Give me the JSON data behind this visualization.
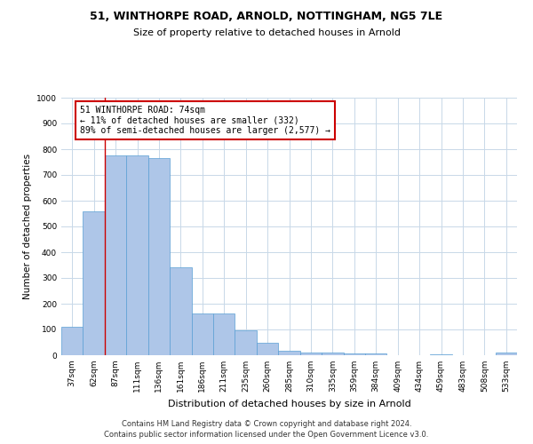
{
  "title1": "51, WINTHORPE ROAD, ARNOLD, NOTTINGHAM, NG5 7LE",
  "title2": "Size of property relative to detached houses in Arnold",
  "xlabel": "Distribution of detached houses by size in Arnold",
  "ylabel": "Number of detached properties",
  "categories": [
    "37sqm",
    "62sqm",
    "87sqm",
    "111sqm",
    "136sqm",
    "161sqm",
    "186sqm",
    "211sqm",
    "235sqm",
    "260sqm",
    "285sqm",
    "310sqm",
    "335sqm",
    "359sqm",
    "384sqm",
    "409sqm",
    "434sqm",
    "459sqm",
    "483sqm",
    "508sqm",
    "533sqm"
  ],
  "values": [
    110,
    557,
    775,
    775,
    765,
    340,
    162,
    162,
    97,
    50,
    18,
    12,
    11,
    8,
    8,
    0,
    0,
    5,
    0,
    0,
    11
  ],
  "bar_color": "#aec6e8",
  "bar_edge_color": "#5a9fd4",
  "property_line_x": 1.5,
  "annotation_text": "51 WINTHORPE ROAD: 74sqm\n← 11% of detached houses are smaller (332)\n89% of semi-detached houses are larger (2,577) →",
  "annotation_box_color": "#ffffff",
  "annotation_box_edge_color": "#cc0000",
  "footer1": "Contains HM Land Registry data © Crown copyright and database right 2024.",
  "footer2": "Contains public sector information licensed under the Open Government Licence v3.0.",
  "ylim": [
    0,
    1000
  ],
  "yticks": [
    0,
    100,
    200,
    300,
    400,
    500,
    600,
    700,
    800,
    900,
    1000
  ],
  "bg_color": "#ffffff",
  "grid_color": "#c8d8e8",
  "title1_fontsize": 9,
  "title2_fontsize": 8,
  "xlabel_fontsize": 8,
  "ylabel_fontsize": 7.5,
  "tick_fontsize": 6.5,
  "annot_fontsize": 7,
  "footer_fontsize": 6
}
